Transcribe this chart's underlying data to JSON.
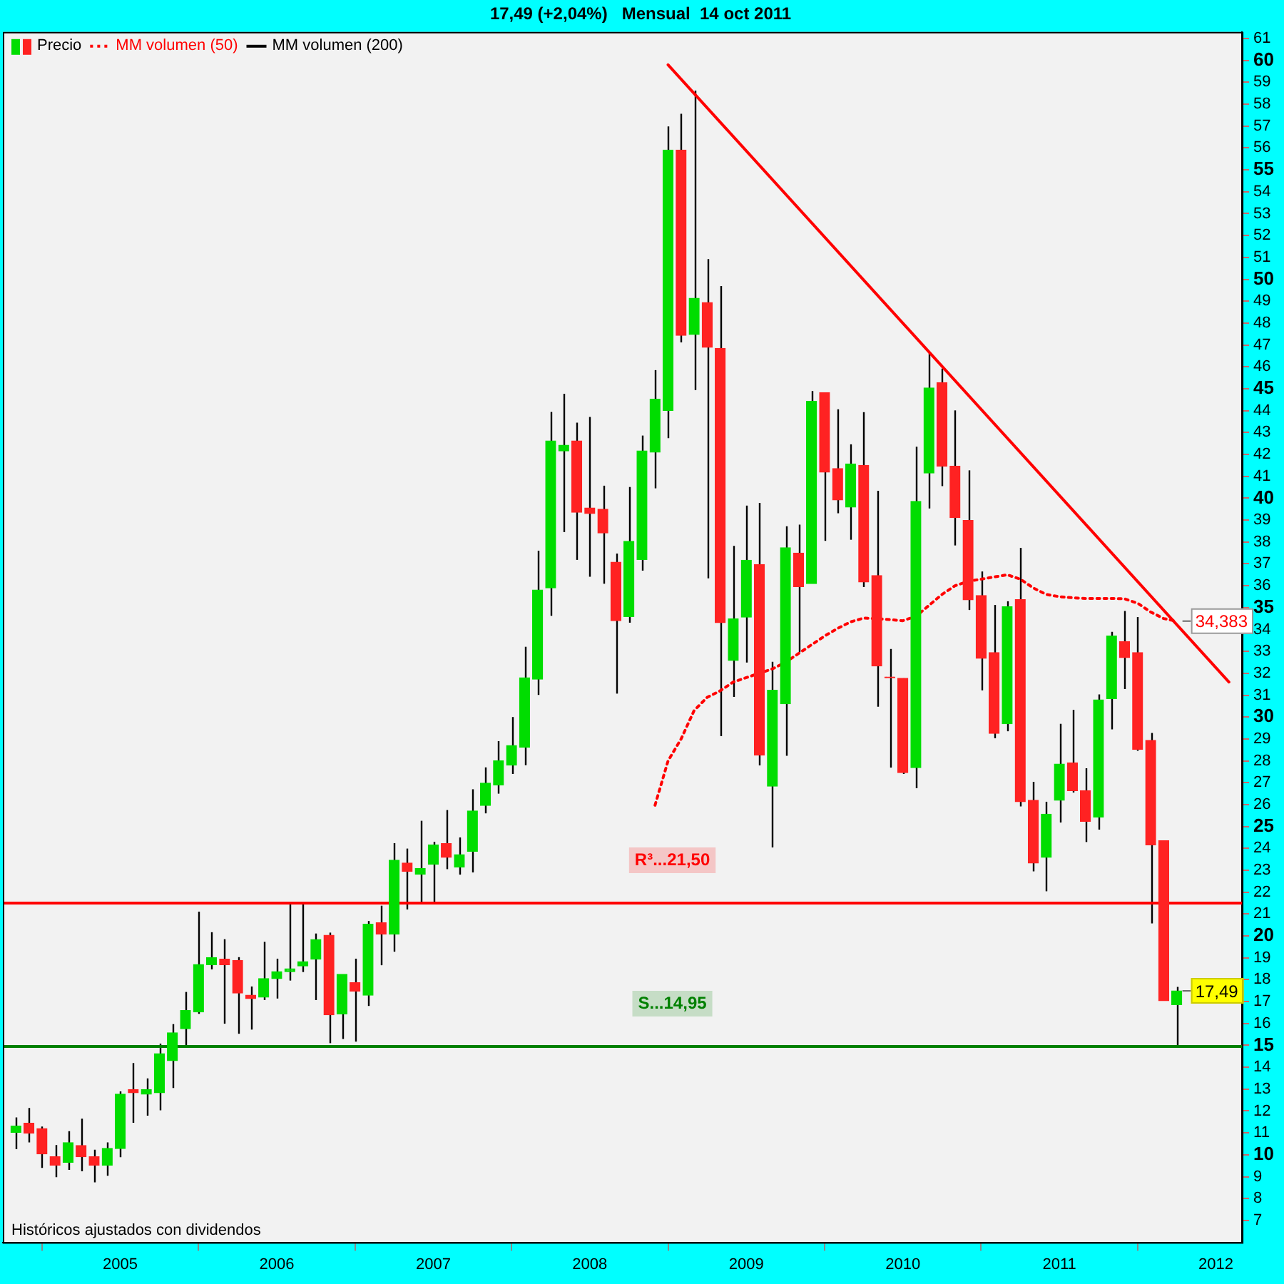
{
  "chart_data": {
    "type": "candlestick",
    "title": "17,49 (+2,04%)   Mensual  14 oct 2011",
    "x": [
      "2004-05",
      "2004-06",
      "2004-07",
      "2004-08",
      "2004-09",
      "2004-10",
      "2004-11",
      "2004-12",
      "2005-01",
      "2005-02",
      "2005-03",
      "2005-04",
      "2005-05",
      "2005-06",
      "2005-07",
      "2005-08",
      "2005-09",
      "2005-10",
      "2005-11",
      "2005-12",
      "2006-01",
      "2006-02",
      "2006-03",
      "2006-04",
      "2006-05",
      "2006-06",
      "2006-07",
      "2006-08",
      "2006-09",
      "2006-10",
      "2006-11",
      "2006-12",
      "2007-01",
      "2007-02",
      "2007-03",
      "2007-04",
      "2007-05",
      "2007-06",
      "2007-07",
      "2007-08",
      "2007-09",
      "2007-10",
      "2007-11",
      "2007-12",
      "2008-01",
      "2008-02",
      "2008-03",
      "2008-04",
      "2008-05",
      "2008-06",
      "2008-07",
      "2008-08",
      "2008-09",
      "2008-10",
      "2008-11",
      "2008-12",
      "2009-01",
      "2009-02",
      "2009-03",
      "2009-04",
      "2009-05",
      "2009-06",
      "2009-07",
      "2009-08",
      "2009-09",
      "2009-10",
      "2009-11",
      "2009-12",
      "2010-01",
      "2010-02",
      "2010-03",
      "2010-04",
      "2010-05",
      "2010-06",
      "2010-07",
      "2010-08",
      "2010-09",
      "2010-10",
      "2010-11",
      "2010-12",
      "2011-01",
      "2011-02",
      "2011-03",
      "2011-04",
      "2011-05",
      "2011-06",
      "2011-07",
      "2011-08",
      "2011-09",
      "2011-10"
    ],
    "series": [
      {
        "name": "Precio",
        "type": "candlestick",
        "ohlc": [
          [
            11.03,
            11.71,
            10.26,
            11.31
          ],
          [
            11.44,
            12.14,
            10.57,
            10.99
          ],
          [
            11.2,
            11.29,
            9.4,
            10.04
          ],
          [
            9.91,
            10.44,
            8.98,
            9.53
          ],
          [
            9.66,
            11.08,
            9.31,
            10.55
          ],
          [
            10.42,
            11.65,
            9.25,
            9.91
          ],
          [
            9.91,
            10.23,
            8.74,
            9.53
          ],
          [
            9.53,
            10.57,
            9.04,
            10.29
          ],
          [
            10.29,
            12.9,
            9.89,
            12.77
          ],
          [
            12.98,
            14.19,
            11.46,
            12.84
          ],
          [
            12.77,
            13.49,
            11.79,
            12.98
          ],
          [
            12.84,
            15.08,
            12.03,
            14.62
          ],
          [
            14.3,
            15.97,
            13.05,
            15.57
          ],
          [
            15.76,
            17.44,
            15.0,
            16.59
          ],
          [
            16.53,
            21.11,
            16.44,
            18.69
          ],
          [
            18.69,
            20.17,
            18.47,
            19.01
          ],
          [
            18.94,
            19.85,
            15.99,
            18.69
          ],
          [
            18.88,
            19.03,
            15.53,
            17.39
          ],
          [
            17.29,
            17.69,
            15.72,
            17.14
          ],
          [
            17.2,
            19.73,
            17.07,
            18.05
          ],
          [
            18.05,
            18.96,
            17.14,
            18.37
          ],
          [
            18.37,
            21.55,
            17.96,
            18.5
          ],
          [
            18.63,
            21.49,
            18.35,
            18.82
          ],
          [
            18.94,
            20.11,
            17.07,
            19.83
          ],
          [
            20.03,
            20.15,
            15.1,
            16.4
          ],
          [
            16.44,
            18.24,
            15.29,
            18.24
          ],
          [
            17.86,
            18.96,
            15.17,
            17.48
          ],
          [
            17.29,
            20.68,
            16.8,
            20.53
          ],
          [
            20.6,
            21.38,
            18.66,
            20.09
          ],
          [
            20.09,
            24.24,
            19.28,
            23.46
          ],
          [
            23.33,
            23.99,
            21.21,
            22.95
          ],
          [
            22.82,
            25.26,
            21.51,
            23.08
          ],
          [
            23.27,
            24.3,
            21.51,
            24.16
          ],
          [
            24.22,
            25.75,
            23.05,
            23.59
          ],
          [
            23.14,
            24.5,
            22.8,
            23.71
          ],
          [
            23.87,
            26.7,
            22.9,
            25.71
          ],
          [
            25.96,
            27.7,
            25.6,
            26.98
          ],
          [
            26.9,
            28.9,
            26.5,
            28.0
          ],
          [
            27.8,
            30.0,
            27.4,
            28.7
          ],
          [
            28.63,
            33.21,
            27.8,
            31.79
          ],
          [
            31.73,
            37.6,
            31.01,
            35.8
          ],
          [
            35.9,
            43.94,
            34.63,
            42.61
          ],
          [
            42.16,
            44.77,
            38.45,
            42.42
          ],
          [
            42.61,
            43.45,
            37.18,
            39.36
          ],
          [
            39.55,
            43.71,
            36.41,
            39.3
          ],
          [
            39.49,
            40.57,
            36.09,
            38.41
          ],
          [
            37.07,
            37.47,
            31.07,
            34.4
          ],
          [
            34.59,
            40.51,
            34.31,
            38.03
          ],
          [
            37.2,
            42.86,
            36.69,
            42.16
          ],
          [
            42.1,
            45.85,
            40.45,
            44.52
          ],
          [
            44.01,
            56.98,
            42.74,
            55.9
          ],
          [
            55.9,
            57.56,
            47.12,
            47.44
          ],
          [
            47.48,
            58.62,
            44.94,
            49.13
          ],
          [
            48.94,
            50.92,
            36.34,
            46.89
          ],
          [
            46.84,
            49.69,
            29.13,
            34.31
          ],
          [
            32.59,
            37.82,
            30.92,
            34.48
          ],
          [
            34.57,
            39.66,
            32.49,
            37.16
          ],
          [
            36.97,
            39.78,
            27.79,
            28.26
          ],
          [
            26.84,
            32.52,
            24.04,
            31.22
          ],
          [
            30.61,
            38.72,
            28.23,
            37.73
          ],
          [
            37.49,
            38.79,
            32.96,
            35.96
          ],
          [
            36.1,
            44.89,
            36.1,
            44.42
          ],
          [
            44.82,
            44.82,
            38.05,
            41.19
          ],
          [
            41.35,
            44.06,
            39.31,
            39.92
          ],
          [
            39.59,
            42.46,
            38.1,
            41.56
          ],
          [
            41.5,
            43.93,
            35.94,
            36.17
          ],
          [
            36.46,
            40.34,
            30.47,
            32.33
          ],
          [
            31.83,
            33.11,
            27.69,
            31.8
          ],
          [
            31.77,
            31.77,
            27.4,
            27.46
          ],
          [
            27.69,
            42.35,
            26.75,
            39.85
          ],
          [
            41.15,
            46.62,
            39.53,
            45.03
          ],
          [
            45.28,
            45.92,
            40.55,
            41.46
          ],
          [
            41.46,
            44.01,
            37.84,
            39.11
          ],
          [
            38.98,
            41.27,
            34.89,
            35.36
          ],
          [
            35.55,
            36.65,
            31.22,
            32.68
          ],
          [
            32.94,
            35.12,
            29.03,
            29.25
          ],
          [
            29.69,
            35.29,
            29.35,
            35.04
          ],
          [
            35.36,
            37.73,
            25.92,
            26.13
          ],
          [
            26.2,
            27.04,
            22.95,
            23.33
          ],
          [
            23.59,
            26.13,
            22.04,
            25.56
          ],
          [
            26.2,
            29.69,
            25.18,
            27.85
          ],
          [
            27.91,
            30.33,
            26.55,
            26.64
          ],
          [
            26.64,
            27.66,
            24.29,
            25.24
          ],
          [
            25.43,
            31.03,
            24.86,
            30.78
          ],
          [
            30.84,
            33.89,
            29.44,
            33.7
          ],
          [
            33.45,
            34.85,
            31.28,
            32.72
          ],
          [
            32.94,
            34.57,
            28.46,
            28.52
          ],
          [
            28.93,
            29.27,
            20.57,
            24.16
          ],
          [
            24.35,
            24.35,
            17.04,
            17.04
          ],
          [
            16.86,
            17.67,
            14.95,
            17.49
          ]
        ],
        "colors": [
          "#00dd00",
          "#ff2222",
          "#ff2222",
          "#ff2222",
          "#00dd00",
          "#ff2222",
          "#ff2222",
          "#00dd00",
          "#00dd00",
          "#ff2222",
          "#00dd00",
          "#00dd00",
          "#00dd00",
          "#00dd00",
          "#00dd00",
          "#00dd00",
          "#ff2222",
          "#ff2222",
          "#ff2222",
          "#00dd00",
          "#00dd00",
          "#00dd00",
          "#00dd00",
          "#00dd00",
          "#ff2222",
          "#00dd00",
          "#ff2222",
          "#00dd00",
          "#ff2222",
          "#00dd00",
          "#ff2222",
          "#00dd00",
          "#00dd00",
          "#ff2222",
          "#00dd00",
          "#00dd00",
          "#00dd00",
          "#00dd00",
          "#00dd00",
          "#00dd00",
          "#00dd00",
          "#00dd00",
          "#00dd00",
          "#ff2222",
          "#ff2222",
          "#ff2222",
          "#ff2222",
          "#00dd00",
          "#00dd00",
          "#00dd00",
          "#00dd00",
          "#ff2222",
          "#00dd00",
          "#ff2222",
          "#ff2222",
          "#00dd00",
          "#00dd00",
          "#ff2222",
          "#00dd00",
          "#00dd00",
          "#ff2222",
          "#00dd00",
          "#ff2222",
          "#ff2222",
          "#00dd00",
          "#ff2222",
          "#ff2222",
          "#ff2222",
          "#ff2222",
          "#00dd00",
          "#00dd00",
          "#ff2222",
          "#ff2222",
          "#ff2222",
          "#ff2222",
          "#ff2222",
          "#00dd00",
          "#ff2222",
          "#ff2222",
          "#00dd00",
          "#00dd00",
          "#ff2222",
          "#ff2222",
          "#00dd00",
          "#00dd00",
          "#ff2222",
          "#ff2222",
          "#ff2222",
          "#ff2222",
          "#00dd00"
        ]
      },
      {
        "name": "MM volumen (50)",
        "type": "line",
        "color": "#ff0000",
        "line_style": "dotted",
        "x": [
          "2008-06",
          "2008-07",
          "2008-08",
          "2008-09",
          "2008-10",
          "2008-11",
          "2008-12",
          "2009-01",
          "2009-02",
          "2009-03",
          "2009-04",
          "2009-05",
          "2009-06",
          "2009-07",
          "2009-08",
          "2009-09",
          "2009-10",
          "2009-11",
          "2009-12",
          "2010-01",
          "2010-02",
          "2010-03",
          "2010-04",
          "2010-05",
          "2010-06",
          "2010-07",
          "2010-08",
          "2010-09",
          "2010-10",
          "2010-11",
          "2010-12",
          "2011-01",
          "2011-02",
          "2011-03",
          "2011-04",
          "2011-05",
          "2011-06",
          "2011-07",
          "2011-08",
          "2011-09",
          "2011-10"
        ],
        "values": [
          25.97,
          28.0,
          29.0,
          30.3,
          30.9,
          31.2,
          31.6,
          31.8,
          32.0,
          32.2,
          32.5,
          32.9,
          33.3,
          33.7,
          34.05,
          34.35,
          34.52,
          34.5,
          34.45,
          34.4,
          34.6,
          35.1,
          35.6,
          36.0,
          36.2,
          36.3,
          36.4,
          36.5,
          36.3,
          35.9,
          35.6,
          35.5,
          35.45,
          35.42,
          35.42,
          35.42,
          35.4,
          35.2,
          34.8,
          34.5,
          34.383
        ]
      },
      {
        "name": "MM volumen (200)",
        "type": "line",
        "color": "#000000",
        "values": [
          null,
          null,
          null,
          null,
          null,
          null,
          null,
          null,
          null,
          null,
          null,
          null,
          null,
          null,
          null,
          null,
          null,
          null,
          null,
          null,
          null,
          null,
          null,
          null,
          null,
          null,
          null,
          null,
          null,
          null,
          null,
          null,
          null,
          null,
          null,
          null,
          null,
          null,
          null,
          null,
          null,
          null,
          null,
          null,
          null,
          null,
          null,
          null,
          null,
          null,
          null,
          null,
          null,
          null,
          null,
          null,
          null,
          null,
          null,
          null,
          null,
          null,
          null,
          null,
          null,
          null,
          null,
          null,
          null,
          null,
          null,
          null,
          null,
          null,
          null,
          null,
          null,
          null,
          null,
          null,
          null,
          null,
          null,
          null,
          null,
          null,
          null,
          null,
          null,
          null
        ]
      },
      {
        "type": "line",
        "color": "#ff0000",
        "line_style": "solid",
        "x": [
          "2008-07",
          "2012-02"
        ],
        "values": [
          59.8,
          31.6
        ]
      }
    ],
    "xlim": [
      "2004-04",
      "2012-03"
    ],
    "xticks": [
      {
        "value": "2005-01",
        "label": "2005"
      },
      {
        "value": "2006-01",
        "label": "2006"
      },
      {
        "value": "2007-01",
        "label": "2007"
      },
      {
        "value": "2008-01",
        "label": "2008"
      },
      {
        "value": "2009-01",
        "label": "2009"
      },
      {
        "value": "2010-01",
        "label": "2010"
      },
      {
        "value": "2011-01",
        "label": "2011"
      },
      {
        "value": "2012-01",
        "label": "2012"
      }
    ],
    "ylim": [
      6,
      61.3
    ],
    "yticks": [
      7,
      8,
      9,
      10,
      11,
      12,
      13,
      14,
      15,
      16,
      17,
      18,
      19,
      20,
      21,
      22,
      23,
      24,
      25,
      26,
      27,
      28,
      29,
      30,
      31,
      32,
      33,
      34,
      35,
      36,
      37,
      38,
      39,
      40,
      41,
      42,
      43,
      44,
      45,
      46,
      47,
      48,
      49,
      50,
      51,
      52,
      53,
      54,
      55,
      56,
      57,
      58,
      59,
      60,
      61
    ],
    "ref_lines": [
      {
        "axis": "y",
        "value": 21.5,
        "label": "R³...21,50",
        "color": "#ff0000"
      },
      {
        "axis": "y",
        "value": 14.95,
        "label": "S...14,95",
        "color": "#008000"
      }
    ],
    "annotations": [
      "Históricos ajustados con dividendos",
      {
        "text": "17,49",
        "x": "2011-10",
        "y": 17.49
      },
      {
        "text": "34,383",
        "x": "2011-10",
        "y": 34.383
      }
    ],
    "grid": false,
    "legend": "top left"
  }
}
